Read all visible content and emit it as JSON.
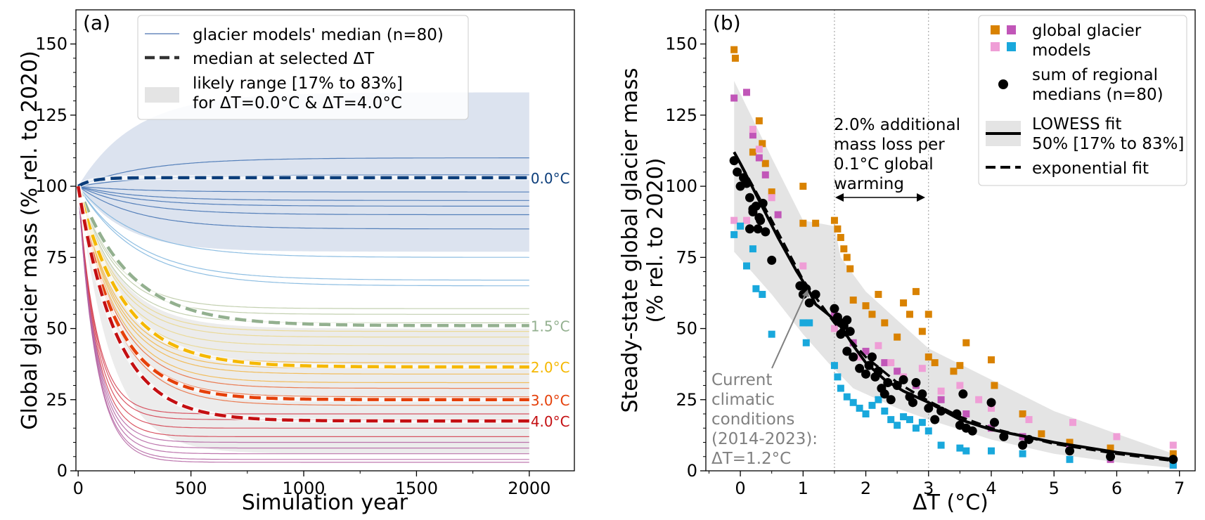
{
  "chart_data": [
    {
      "panel": "(a)",
      "type": "line",
      "xlabel": "Simulation year",
      "ylabel": "Global glacier mass (% rel. to 2020)",
      "xlim": [
        -10,
        2200
      ],
      "ylim": [
        0,
        162
      ],
      "xticks": [
        0,
        500,
        1000,
        1500,
        2000
      ],
      "yticks": [
        0,
        25,
        50,
        75,
        100,
        125,
        150
      ],
      "legend": {
        "placement": "top-right",
        "entries": [
          "glacier models' median (n=80)",
          "median at selected ΔT",
          "likely range [17% to 83%]",
          "for ΔT=0.0°C & ΔT=4.0°C"
        ]
      },
      "band_colors": {
        "dT_0": "#dce3ef",
        "dT_4": "#ececec"
      },
      "likely_range": [
        {
          "dT": "0.0°C",
          "lower_end": 77,
          "upper_end": 133
        },
        {
          "dT": "4.0°C",
          "lower_end": 6,
          "upper_end": 50
        }
      ],
      "thin_lines_example_asymptotes": [
        110,
        104,
        98,
        95,
        93,
        90,
        85,
        75,
        67,
        65,
        57,
        55,
        52,
        49,
        47,
        44,
        41,
        38,
        36,
        34,
        31,
        29,
        26,
        23,
        20,
        18,
        15,
        12,
        10,
        8,
        6,
        4,
        3
      ],
      "series": [
        {
          "name": "0.0°C",
          "color": "#0b3d7a",
          "start": 100,
          "end": 103
        },
        {
          "name": "1.5°C",
          "color": "#93b08f",
          "start": 100,
          "end": 51
        },
        {
          "name": "2.0°C",
          "color": "#f5b800",
          "start": 100,
          "end": 36.5
        },
        {
          "name": "3.0°C",
          "color": "#e5400a",
          "start": 100,
          "end": 25
        },
        {
          "name": "4.0°C",
          "color": "#c40f12",
          "start": 100,
          "end": 17.5
        }
      ]
    },
    {
      "panel": "(b)",
      "type": "scatter",
      "xlabel": "ΔT (°C)",
      "ylabel_line1": "Steady-state global glacier mass",
      "ylabel_line2": "(% rel. to 2020)",
      "xlim": [
        -0.55,
        7.25
      ],
      "ylim": [
        0,
        162
      ],
      "xticks": [
        0,
        1,
        2,
        3,
        4,
        5,
        6,
        7
      ],
      "yticks": [
        0,
        25,
        50,
        75,
        100,
        125,
        150
      ],
      "vlines": [
        1.5,
        3.0
      ],
      "annotation_lines": [
        "2.0% additional",
        "mass loss per",
        "0.1°C global",
        "warming"
      ],
      "current_conditions_lines": [
        "Current",
        "climatic",
        "conditions",
        "(2014-2023):",
        "ΔT=1.2°C"
      ],
      "legend": {
        "placement": "top-right",
        "entries": [
          "global glacier",
          "models",
          "sum of regional",
          "medians (n=80)",
          "LOWESS fit",
          "50% [17% to 83%]",
          "exponential fit"
        ]
      },
      "marker_colors": {
        "orange": "#d98200",
        "magenta": "#c156b8",
        "pink": "#ef9ed6",
        "cyan": "#19a8dc"
      },
      "lowess_fit": [
        [
          -0.1,
          112
        ],
        [
          0,
          108
        ],
        [
          0.3,
          95
        ],
        [
          0.6,
          82
        ],
        [
          0.9,
          70
        ],
        [
          1.1,
          63
        ],
        [
          1.2,
          58.5
        ],
        [
          1.4,
          55
        ],
        [
          1.6,
          51
        ],
        [
          1.8,
          44
        ],
        [
          2.0,
          38
        ],
        [
          2.3,
          32
        ],
        [
          2.6,
          28
        ],
        [
          3.0,
          24
        ],
        [
          3.5,
          18
        ],
        [
          4.0,
          14.5
        ],
        [
          5.0,
          10
        ],
        [
          6.0,
          6.5
        ],
        [
          6.9,
          4
        ]
      ],
      "exponential_fit": [
        [
          -0.1,
          112
        ],
        [
          0.5,
          88
        ],
        [
          1.0,
          67
        ],
        [
          1.5,
          52
        ],
        [
          2.0,
          40
        ],
        [
          2.5,
          31
        ],
        [
          3.0,
          24.5
        ],
        [
          3.5,
          19
        ],
        [
          4.0,
          15
        ],
        [
          5.0,
          9.5
        ],
        [
          6.0,
          6
        ],
        [
          6.9,
          3.5
        ]
      ],
      "band_17": [
        [
          -0.1,
          77
        ],
        [
          0.5,
          62
        ],
        [
          1.0,
          48
        ],
        [
          1.4,
          38
        ],
        [
          1.8,
          29
        ],
        [
          2.5,
          22
        ],
        [
          3.0,
          18
        ],
        [
          4.0,
          11
        ],
        [
          5.0,
          6
        ],
        [
          6.0,
          3
        ],
        [
          6.9,
          1
        ]
      ],
      "band_83": [
        [
          -0.1,
          137
        ],
        [
          0.5,
          110
        ],
        [
          1.0,
          88
        ],
        [
          1.5,
          86
        ],
        [
          1.6,
          75
        ],
        [
          2.0,
          63
        ],
        [
          3.0,
          43
        ],
        [
          4.0,
          32
        ],
        [
          5.0,
          21
        ],
        [
          6.0,
          13
        ],
        [
          6.9,
          6
        ]
      ],
      "regional_medians": [
        [
          -0.1,
          109
        ],
        [
          -0.05,
          105
        ],
        [
          0.0,
          100
        ],
        [
          0.05,
          103
        ],
        [
          0.1,
          101
        ],
        [
          0.15,
          96
        ],
        [
          0.2,
          92
        ],
        [
          0.25,
          93
        ],
        [
          0.28,
          85
        ],
        [
          0.32,
          88
        ],
        [
          0.36,
          94
        ],
        [
          0.4,
          84
        ],
        [
          0.5,
          74
        ],
        [
          0.15,
          85
        ],
        [
          0.2,
          91
        ],
        [
          0.3,
          89
        ],
        [
          0.95,
          65
        ],
        [
          1.0,
          62
        ],
        [
          1.05,
          64
        ],
        [
          1.1,
          59
        ],
        [
          1.5,
          57
        ],
        [
          1.55,
          54
        ],
        [
          1.6,
          52
        ],
        [
          1.65,
          51
        ],
        [
          1.7,
          53
        ],
        [
          1.75,
          49
        ],
        [
          1.6,
          48
        ],
        [
          1.7,
          42
        ],
        [
          1.8,
          40
        ],
        [
          1.9,
          36
        ],
        [
          2.0,
          34
        ],
        [
          2.05,
          37
        ],
        [
          2.1,
          40
        ],
        [
          2.15,
          33
        ],
        [
          2.2,
          35
        ],
        [
          2.25,
          29
        ],
        [
          2.3,
          27
        ],
        [
          2.35,
          31
        ],
        [
          2.4,
          25
        ],
        [
          2.5,
          30
        ],
        [
          2.6,
          32
        ],
        [
          2.7,
          26
        ],
        [
          2.75,
          24
        ],
        [
          2.8,
          31
        ],
        [
          2.9,
          27
        ],
        [
          3.0,
          22
        ],
        [
          3.1,
          18
        ],
        [
          3.5,
          16
        ],
        [
          3.55,
          27
        ],
        [
          3.6,
          15
        ],
        [
          3.7,
          14
        ],
        [
          4.0,
          24
        ],
        [
          4.05,
          17
        ],
        [
          4.2,
          12
        ],
        [
          4.5,
          9
        ],
        [
          4.6,
          11
        ],
        [
          5.25,
          7
        ],
        [
          5.9,
          5
        ],
        [
          6.9,
          4
        ],
        [
          1.2,
          62
        ],
        [
          3.2,
          21
        ],
        [
          3.45,
          20
        ]
      ],
      "global_models_orange": [
        [
          -0.1,
          148
        ],
        [
          -0.08,
          145
        ],
        [
          0.2,
          112
        ],
        [
          0.3,
          123
        ],
        [
          0.35,
          115
        ],
        [
          0.4,
          108
        ],
        [
          0.5,
          98
        ],
        [
          1.0,
          100
        ],
        [
          1.0,
          87
        ],
        [
          1.2,
          87
        ],
        [
          1.5,
          88
        ],
        [
          1.55,
          85
        ],
        [
          1.6,
          82
        ],
        [
          1.65,
          78
        ],
        [
          1.7,
          75
        ],
        [
          1.75,
          71
        ],
        [
          1.8,
          60
        ],
        [
          2.0,
          58
        ],
        [
          2.1,
          55
        ],
        [
          2.2,
          62
        ],
        [
          2.3,
          52
        ],
        [
          2.5,
          47
        ],
        [
          2.6,
          59
        ],
        [
          2.7,
          55
        ],
        [
          2.9,
          49
        ],
        [
          3.0,
          40
        ],
        [
          3.1,
          38
        ],
        [
          3.5,
          37
        ],
        [
          3.6,
          45
        ],
        [
          3.4,
          35
        ],
        [
          4.0,
          39
        ],
        [
          4.05,
          30
        ],
        [
          4.5,
          20
        ],
        [
          4.8,
          13
        ],
        [
          5.25,
          10
        ],
        [
          5.9,
          8
        ],
        [
          6.9,
          6
        ],
        [
          2.8,
          63
        ],
        [
          3.0,
          55
        ]
      ],
      "global_models_magenta": [
        [
          -0.1,
          131
        ],
        [
          0.1,
          133
        ],
        [
          0.2,
          118
        ],
        [
          0.3,
          110
        ],
        [
          0.4,
          104
        ],
        [
          0.6,
          90
        ],
        [
          1.0,
          65
        ],
        [
          1.5,
          55
        ],
        [
          1.8,
          45
        ],
        [
          2.0,
          42
        ],
        [
          2.3,
          38
        ],
        [
          2.5,
          35
        ],
        [
          2.8,
          30
        ],
        [
          3.2,
          25
        ],
        [
          3.6,
          20
        ],
        [
          4.0,
          15
        ],
        [
          4.5,
          12
        ],
        [
          5.25,
          8
        ],
        [
          5.9,
          4
        ],
        [
          6.9,
          2
        ]
      ],
      "global_models_pink": [
        [
          -0.1,
          88
        ],
        [
          0.1,
          88
        ],
        [
          0.2,
          120
        ],
        [
          0.3,
          113
        ],
        [
          0.5,
          96
        ],
        [
          1.0,
          72
        ],
        [
          1.5,
          50
        ],
        [
          1.7,
          42
        ],
        [
          1.9,
          40
        ],
        [
          2.2,
          44
        ],
        [
          2.4,
          38
        ],
        [
          2.6,
          33
        ],
        [
          2.9,
          36
        ],
        [
          3.2,
          28
        ],
        [
          3.5,
          30
        ],
        [
          3.8,
          25
        ],
        [
          4.0,
          22
        ],
        [
          4.6,
          18
        ],
        [
          5.3,
          17
        ],
        [
          6.0,
          12
        ],
        [
          6.9,
          9
        ]
      ],
      "global_models_cyan": [
        [
          -0.1,
          83
        ],
        [
          0.0,
          86
        ],
        [
          0.1,
          72
        ],
        [
          0.2,
          78
        ],
        [
          0.25,
          64
        ],
        [
          0.35,
          62
        ],
        [
          0.5,
          48
        ],
        [
          1.0,
          52
        ],
        [
          1.05,
          45
        ],
        [
          1.1,
          52
        ],
        [
          1.5,
          37
        ],
        [
          1.55,
          33
        ],
        [
          1.6,
          29
        ],
        [
          1.7,
          26
        ],
        [
          1.8,
          24
        ],
        [
          1.9,
          22
        ],
        [
          2.0,
          20
        ],
        [
          2.1,
          23
        ],
        [
          2.2,
          25
        ],
        [
          2.3,
          21
        ],
        [
          2.4,
          18
        ],
        [
          2.5,
          16
        ],
        [
          2.6,
          19
        ],
        [
          2.7,
          18
        ],
        [
          2.8,
          15
        ],
        [
          2.9,
          17
        ],
        [
          3.0,
          14
        ],
        [
          3.2,
          9
        ],
        [
          3.5,
          8
        ],
        [
          3.6,
          7
        ],
        [
          4.0,
          7
        ],
        [
          4.5,
          6
        ],
        [
          5.25,
          4
        ],
        [
          5.9,
          5
        ],
        [
          6.9,
          2
        ]
      ]
    }
  ]
}
